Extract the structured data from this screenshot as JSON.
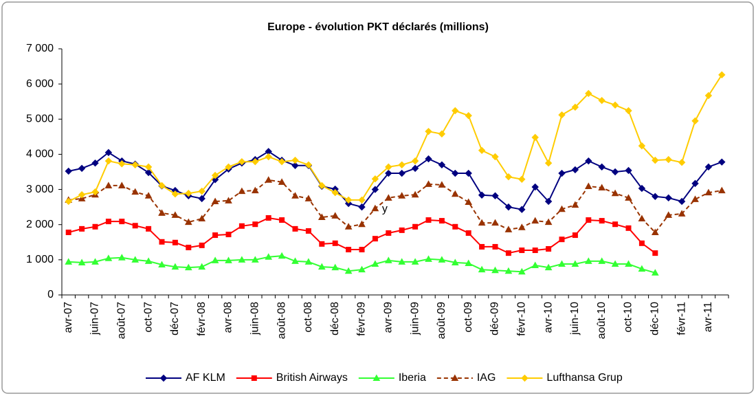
{
  "chart_data": {
    "type": "line",
    "title": "Europe - évolution PKT déclarés (millions)",
    "categories": [
      "avr-07",
      null,
      "juin-07",
      null,
      "août-07",
      null,
      "oct-07",
      null,
      "déc-07",
      null,
      "févr-08",
      null,
      "avr-08",
      null,
      "juin-08",
      null,
      "août-08",
      null,
      "oct-08",
      null,
      "déc-08",
      null,
      "févr-09",
      null,
      "avr-09",
      null,
      "juin-09",
      null,
      "août-09",
      null,
      "oct-09",
      null,
      "déc-09",
      null,
      "févr-10",
      null,
      "avr-10",
      null,
      "juin-10",
      null,
      "août-10",
      null,
      "oct-10",
      null,
      "déc-10",
      null,
      "févr-11",
      null,
      "avr-11",
      null
    ],
    "series": [
      {
        "name": "AF KLM",
        "color": "#000080",
        "marker": "diamond",
        "dashed": false,
        "values": [
          3520,
          3600,
          3750,
          4050,
          3810,
          3720,
          3480,
          3100,
          2970,
          2820,
          2740,
          3280,
          3580,
          3750,
          3850,
          4080,
          3830,
          3680,
          3680,
          3090,
          3010,
          2600,
          2500,
          3000,
          3460,
          3460,
          3600,
          3870,
          3700,
          3460,
          3460,
          2840,
          2820,
          2500,
          2430,
          3070,
          2660,
          3460,
          3560,
          3810,
          3640,
          3500,
          3540,
          3030,
          2800,
          2760,
          2660,
          3170,
          3640,
          3780
        ]
      },
      {
        "name": "British Airways",
        "color": "#ff0000",
        "marker": "square",
        "dashed": false,
        "values": [
          1780,
          1880,
          1940,
          2090,
          2090,
          1970,
          1880,
          1510,
          1490,
          1350,
          1410,
          1700,
          1720,
          1960,
          2010,
          2190,
          2130,
          1880,
          1820,
          1450,
          1470,
          1290,
          1290,
          1600,
          1760,
          1840,
          1940,
          2130,
          2110,
          1940,
          1760,
          1370,
          1370,
          1190,
          1270,
          1270,
          1310,
          1580,
          1700,
          2130,
          2110,
          2010,
          1900,
          1470,
          1190,
          null,
          null,
          null,
          null,
          null
        ]
      },
      {
        "name": "Iberia",
        "color": "#33ff33",
        "marker": "triangle",
        "dashed": false,
        "values": [
          940,
          920,
          940,
          1040,
          1060,
          1000,
          960,
          860,
          800,
          780,
          800,
          980,
          980,
          1000,
          1000,
          1080,
          1110,
          960,
          940,
          800,
          780,
          680,
          720,
          880,
          980,
          940,
          940,
          1020,
          1000,
          920,
          900,
          720,
          700,
          680,
          660,
          840,
          780,
          880,
          880,
          960,
          960,
          880,
          880,
          740,
          630,
          null,
          null,
          null,
          null,
          null
        ]
      },
      {
        "name": "IAG",
        "color": "#993300",
        "marker": "triangle",
        "dashed": true,
        "values": [
          2700,
          2740,
          2850,
          3110,
          3110,
          2930,
          2820,
          2330,
          2270,
          2070,
          2170,
          2660,
          2680,
          2950,
          2970,
          3270,
          3210,
          2820,
          2740,
          2210,
          2250,
          1940,
          2010,
          2460,
          2760,
          2820,
          2850,
          3150,
          3130,
          2870,
          2640,
          2050,
          2050,
          1860,
          1920,
          2110,
          2070,
          2440,
          2560,
          3090,
          3050,
          2890,
          2760,
          2170,
          1780,
          2270,
          2310,
          2720,
          2910,
          2970
        ]
      },
      {
        "name": "Lufthansa Grup",
        "color": "#ffcc00",
        "marker": "diamond",
        "dashed": false,
        "values": [
          2660,
          2850,
          2930,
          3810,
          3730,
          3700,
          3640,
          3110,
          2870,
          2890,
          2950,
          3400,
          3640,
          3790,
          3790,
          3930,
          3790,
          3830,
          3700,
          3110,
          2910,
          2700,
          2700,
          3300,
          3640,
          3700,
          3810,
          4650,
          4580,
          5240,
          5100,
          4110,
          3930,
          3360,
          3290,
          4480,
          3750,
          5120,
          5340,
          5730,
          5530,
          5400,
          5240,
          4240,
          3830,
          3850,
          3770,
          4950,
          5670,
          6260
        ]
      }
    ],
    "annotations": [
      {
        "text": "y",
        "category": 23,
        "value": 2460
      }
    ],
    "ylim": [
      0,
      7000
    ],
    "yticks": [
      0,
      {
        "value": 1000,
        "label": "1 000"
      },
      {
        "value": 2000,
        "label": "2 000"
      },
      {
        "value": 3000,
        "label": "3 000"
      },
      {
        "value": 4000,
        "label": "4 000"
      },
      {
        "value": 5000,
        "label": "5 000"
      },
      {
        "value": 6000,
        "label": "6 000"
      },
      {
        "value": 7000,
        "label": "7 000"
      }
    ],
    "grid": false,
    "legend": "bottom"
  }
}
